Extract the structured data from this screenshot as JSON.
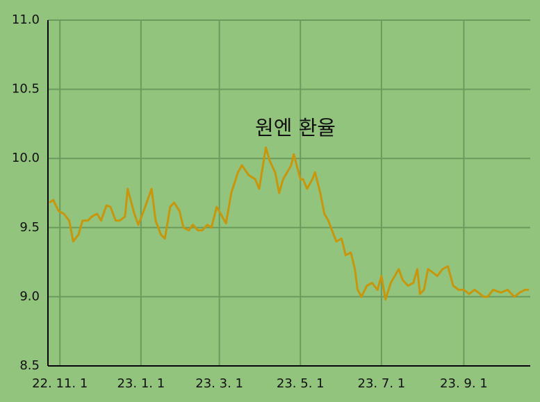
{
  "chart_data": {
    "type": "line",
    "title": "원엔 환율",
    "x": [
      "2022-10-24",
      "2022-10-27",
      "2022-10-31",
      "2022-11-04",
      "2022-11-08",
      "2022-11-11",
      "2022-11-15",
      "2022-11-18",
      "2022-11-22",
      "2022-11-25",
      "2022-11-29",
      "2022-12-02",
      "2022-12-06",
      "2022-12-09",
      "2022-12-13",
      "2022-12-16",
      "2022-12-20",
      "2022-12-22",
      "2022-12-27",
      "2022-12-30",
      "2023-01-03",
      "2023-01-06",
      "2023-01-09",
      "2023-01-12",
      "2023-01-16",
      "2023-01-19",
      "2023-01-23",
      "2023-01-26",
      "2023-01-30",
      "2023-02-02",
      "2023-02-06",
      "2023-02-09",
      "2023-02-13",
      "2023-02-16",
      "2023-02-20",
      "2023-02-23",
      "2023-02-27",
      "2023-03-02",
      "2023-03-06",
      "2023-03-10",
      "2023-03-15",
      "2023-03-18",
      "2023-03-23",
      "2023-03-28",
      "2023-03-31",
      "2023-04-05",
      "2023-04-08",
      "2023-04-12",
      "2023-04-15",
      "2023-04-18",
      "2023-04-24",
      "2023-04-26",
      "2023-05-01",
      "2023-05-03",
      "2023-05-06",
      "2023-05-10",
      "2023-05-12",
      "2023-05-16",
      "2023-05-19",
      "2023-05-22",
      "2023-05-26",
      "2023-05-28",
      "2023-06-01",
      "2023-06-04",
      "2023-06-08",
      "2023-06-11",
      "2023-06-13",
      "2023-06-16",
      "2023-06-20",
      "2023-06-24",
      "2023-06-28",
      "2023-07-01",
      "2023-07-04",
      "2023-07-08",
      "2023-07-11",
      "2023-07-14",
      "2023-07-17",
      "2023-07-21",
      "2023-07-25",
      "2023-07-28",
      "2023-07-30",
      "2023-08-02",
      "2023-08-05",
      "2023-08-08",
      "2023-08-12",
      "2023-08-16",
      "2023-08-20",
      "2023-08-24",
      "2023-08-28",
      "2023-09-01",
      "2023-09-05",
      "2023-09-09",
      "2023-09-12",
      "2023-09-16",
      "2023-09-19",
      "2023-09-23",
      "2023-09-29",
      "2023-10-04",
      "2023-10-09",
      "2023-10-13",
      "2023-10-17",
      "2023-10-20"
    ],
    "series": [
      {
        "name": "원엔 환율",
        "color": "#c8960a",
        "values": [
          9.68,
          9.7,
          9.62,
          9.6,
          9.55,
          9.4,
          9.45,
          9.55,
          9.55,
          9.58,
          9.6,
          9.55,
          9.66,
          9.65,
          9.55,
          9.55,
          9.58,
          9.78,
          9.6,
          9.52,
          9.62,
          9.7,
          9.78,
          9.55,
          9.45,
          9.42,
          9.65,
          9.68,
          9.62,
          9.5,
          9.48,
          9.52,
          9.48,
          9.48,
          9.52,
          9.5,
          9.65,
          9.6,
          9.53,
          9.75,
          9.9,
          9.95,
          9.88,
          9.85,
          9.78,
          10.08,
          9.98,
          9.9,
          9.75,
          9.85,
          9.95,
          10.03,
          9.85,
          9.85,
          9.78,
          9.85,
          9.9,
          9.75,
          9.6,
          9.55,
          9.45,
          9.4,
          9.42,
          9.3,
          9.32,
          9.2,
          9.05,
          9.0,
          9.08,
          9.1,
          9.05,
          9.15,
          8.98,
          9.1,
          9.15,
          9.2,
          9.12,
          9.08,
          9.1,
          9.2,
          9.02,
          9.05,
          9.2,
          9.18,
          9.15,
          9.2,
          9.22,
          9.08,
          9.05,
          9.05,
          9.02,
          9.05,
          9.03,
          9.0,
          9.0,
          9.05,
          9.03,
          9.05,
          9.0,
          9.03,
          9.05,
          9.05
        ]
      }
    ],
    "xlim": [
      "2022-10-23",
      "2023-10-21"
    ],
    "xticks": [
      {
        "value": "2022-11-01",
        "label": "22. 11. 1"
      },
      {
        "value": "2023-01-01",
        "label": "23. 1. 1"
      },
      {
        "value": "2023-03-01",
        "label": "23. 3. 1"
      },
      {
        "value": "2023-05-01",
        "label": "23. 5. 1"
      },
      {
        "value": "2023-07-01",
        "label": "23. 7. 1"
      },
      {
        "value": "2023-09-01",
        "label": "23. 9. 1"
      }
    ],
    "ylim": [
      8.5,
      11
    ],
    "yticks": [
      {
        "value": 11,
        "label": "11.0"
      },
      10.5,
      {
        "value": 10,
        "label": "10.0"
      },
      9.5,
      {
        "value": 9,
        "label": "9.0"
      },
      8.5
    ],
    "grid": true
  }
}
